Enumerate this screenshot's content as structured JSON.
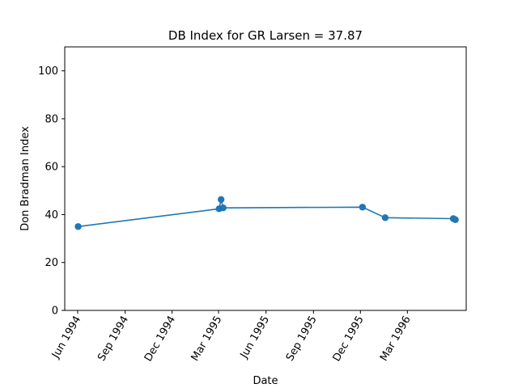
{
  "chart_data": {
    "type": "line",
    "title": "DB Index for GR Larsen = 37.87",
    "xlabel": "Date",
    "ylabel": "Don Bradman Index",
    "x_type": "date",
    "xlim": [
      "1994-05-07",
      "1996-06-23"
    ],
    "ylim": [
      0,
      110
    ],
    "xticks": [
      {
        "date": "1994-06-01",
        "label": "Jun 1994"
      },
      {
        "date": "1994-09-01",
        "label": "Sep 1994"
      },
      {
        "date": "1994-12-01",
        "label": "Dec 1994"
      },
      {
        "date": "1995-03-01",
        "label": "Mar 1995"
      },
      {
        "date": "1995-06-01",
        "label": "Jun 1995"
      },
      {
        "date": "1995-09-01",
        "label": "Sep 1995"
      },
      {
        "date": "1995-12-01",
        "label": "Dec 1995"
      },
      {
        "date": "1996-03-01",
        "label": "Mar 1996"
      }
    ],
    "yticks": [
      0,
      20,
      40,
      60,
      80,
      100
    ],
    "grid": false,
    "series": [
      {
        "color": "#1f77b4",
        "marker": "circle",
        "points": [
          {
            "x": "1994-06-02",
            "y": 35.0
          },
          {
            "x": "1995-03-02",
            "y": 42.4
          },
          {
            "x": "1995-03-06",
            "y": 46.3
          },
          {
            "x": "1995-03-10",
            "y": 42.8
          },
          {
            "x": "1995-12-05",
            "y": 43.1
          },
          {
            "x": "1996-01-18",
            "y": 38.7
          },
          {
            "x": "1996-05-29",
            "y": 38.3
          },
          {
            "x": "1996-06-02",
            "y": 37.87
          }
        ]
      }
    ]
  }
}
